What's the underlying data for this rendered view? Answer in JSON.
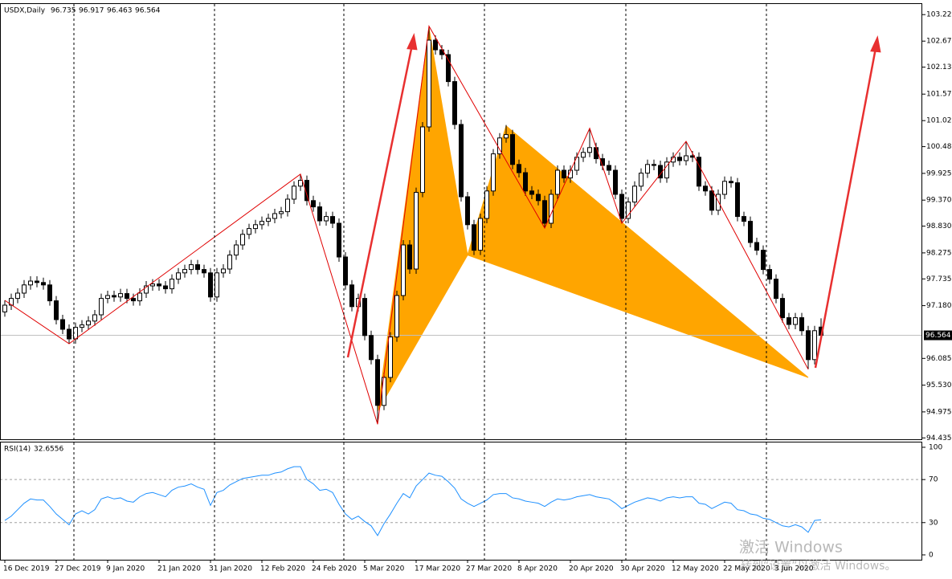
{
  "chart_data": [
    {
      "type": "candlestick",
      "title": "USDX,Daily",
      "categories": [
        "16 Dec 2019",
        null,
        null,
        null,
        null,
        null,
        null,
        null,
        "27 Dec 2019",
        null,
        null,
        null,
        null,
        null,
        null,
        null,
        "9 Jan 2020",
        null,
        null,
        null,
        null,
        null,
        null,
        null,
        "21 Jan 2020",
        null,
        null,
        null,
        null,
        null,
        null,
        null,
        "31 Jan 2020",
        null,
        null,
        null,
        null,
        null,
        null,
        null,
        "12 Feb 2020",
        null,
        null,
        null,
        null,
        null,
        null,
        null,
        "24 Feb 2020",
        null,
        null,
        null,
        null,
        null,
        null,
        null,
        "5 Mar 2020",
        null,
        null,
        null,
        null,
        null,
        null,
        null,
        "17 Mar 2020",
        null,
        null,
        null,
        null,
        null,
        null,
        null,
        "27 Mar 2020",
        null,
        null,
        null,
        null,
        null,
        null,
        null,
        "8 Apr 2020",
        null,
        null,
        null,
        null,
        null,
        null,
        null,
        "20 Apr 2020",
        null,
        null,
        null,
        null,
        null,
        null,
        null,
        "30 Apr 2020",
        null,
        null,
        null,
        null,
        null,
        null,
        null,
        "12 May 2020",
        null,
        null,
        null,
        null,
        null,
        null,
        null,
        "22 May 2020",
        null,
        null,
        null,
        null,
        null,
        null,
        null,
        "3 Jun 2020",
        null,
        null,
        null,
        null,
        null,
        null,
        null
      ],
      "open": [
        97.05,
        97.19,
        97.33,
        97.44,
        97.61,
        97.69,
        97.66,
        97.61,
        97.28,
        96.89,
        96.69,
        96.49,
        96.73,
        96.78,
        96.86,
        96.99,
        97.33,
        97.39,
        97.36,
        97.43,
        97.33,
        97.28,
        97.44,
        97.59,
        97.63,
        97.59,
        97.53,
        97.73,
        97.86,
        97.93,
        98.03,
        97.93,
        97.86,
        97.36,
        97.86,
        97.94,
        98.23,
        98.44,
        98.66,
        98.78,
        98.86,
        98.93,
        98.99,
        99.09,
        99.13,
        99.39,
        99.66,
        99.78,
        99.36,
        99.23,
        98.94,
        99.03,
        98.89,
        98.19,
        97.61,
        97.16,
        97.33,
        96.56,
        96.06,
        95.11,
        95.69,
        96.53,
        97.39,
        98.44,
        97.94,
        99.53,
        100.89,
        102.69,
        102.49,
        102.39,
        101.83,
        100.94,
        99.44,
        98.86,
        98.33,
        98.99,
        99.56,
        100.33,
        100.66,
        100.73,
        100.11,
        99.94,
        99.56,
        99.49,
        99.36,
        98.89,
        99.49,
        99.99,
        99.83,
        99.99,
        100.26,
        100.36,
        100.46,
        100.23,
        100.09,
        99.99,
        99.49,
        98.99,
        99.33,
        99.66,
        99.93,
        100.11,
        100.09,
        99.83,
        100.16,
        100.26,
        100.19,
        100.29,
        100.26,
        99.66,
        99.56,
        99.16,
        99.49,
        99.76,
        99.73,
        99.03,
        98.93,
        98.49,
        98.33,
        97.93,
        97.73,
        97.33,
        96.93,
        96.79,
        96.93,
        96.66,
        96.06,
        96.735
      ],
      "high": [
        97.29,
        97.43,
        97.54,
        97.71,
        97.79,
        97.79,
        97.76,
        97.71,
        97.38,
        96.99,
        96.79,
        96.83,
        96.88,
        96.96,
        97.09,
        97.43,
        97.49,
        97.49,
        97.53,
        97.53,
        97.43,
        97.54,
        97.69,
        97.73,
        97.73,
        97.69,
        97.83,
        97.96,
        98.03,
        98.13,
        98.13,
        98.03,
        97.96,
        97.96,
        98.04,
        98.33,
        98.54,
        98.76,
        98.88,
        98.96,
        99.03,
        99.09,
        99.19,
        99.23,
        99.49,
        99.76,
        99.91,
        99.88,
        99.46,
        99.33,
        99.13,
        99.13,
        98.99,
        98.29,
        97.71,
        97.43,
        97.43,
        96.66,
        96.16,
        95.79,
        96.63,
        97.49,
        98.54,
        98.54,
        99.63,
        100.99,
        102.98,
        102.79,
        102.59,
        102.49,
        101.93,
        101.04,
        99.54,
        98.96,
        99.09,
        99.66,
        100.43,
        100.76,
        100.93,
        100.83,
        100.21,
        100.04,
        99.66,
        99.59,
        99.46,
        99.59,
        100.09,
        100.09,
        100.09,
        100.36,
        100.46,
        100.86,
        100.56,
        100.33,
        100.19,
        100.09,
        99.59,
        99.43,
        99.76,
        100.03,
        100.21,
        100.21,
        100.19,
        100.26,
        100.36,
        100.36,
        100.59,
        100.39,
        100.36,
        99.76,
        99.66,
        99.59,
        99.86,
        99.86,
        99.83,
        99.13,
        99.03,
        98.59,
        98.43,
        98.03,
        97.83,
        97.43,
        97.03,
        97.03,
        97.03,
        96.76,
        96.76,
        96.917
      ],
      "low": [
        96.95,
        97.09,
        97.23,
        97.34,
        97.51,
        97.56,
        97.51,
        97.18,
        96.79,
        96.59,
        96.39,
        96.39,
        96.63,
        96.68,
        96.76,
        96.89,
        97.23,
        97.26,
        97.26,
        97.23,
        97.18,
        97.18,
        97.34,
        97.49,
        97.49,
        97.43,
        97.43,
        97.63,
        97.76,
        97.83,
        97.83,
        97.76,
        97.26,
        97.26,
        97.76,
        97.84,
        98.13,
        98.34,
        98.56,
        98.68,
        98.76,
        98.83,
        98.89,
        98.99,
        99.03,
        99.29,
        99.56,
        99.26,
        99.13,
        98.84,
        98.84,
        98.79,
        98.09,
        97.51,
        97.06,
        97.06,
        96.46,
        95.96,
        94.72,
        95.01,
        95.59,
        96.43,
        97.29,
        97.84,
        97.84,
        99.43,
        100.79,
        102.39,
        102.29,
        101.73,
        100.84,
        99.34,
        98.76,
        98.23,
        98.23,
        98.89,
        99.46,
        100.23,
        100.56,
        100.01,
        99.84,
        99.46,
        99.39,
        99.26,
        98.79,
        98.79,
        99.39,
        99.73,
        99.73,
        99.89,
        100.16,
        100.26,
        100.13,
        99.99,
        99.89,
        99.39,
        98.89,
        98.89,
        99.23,
        99.56,
        99.83,
        99.99,
        99.73,
        99.73,
        100.06,
        100.09,
        100.09,
        100.16,
        99.56,
        99.46,
        99.06,
        99.06,
        99.39,
        99.63,
        98.93,
        98.83,
        98.39,
        98.23,
        97.83,
        97.63,
        97.23,
        96.83,
        96.69,
        96.69,
        96.56,
        95.86,
        95.96,
        96.463
      ],
      "close": [
        97.19,
        97.33,
        97.44,
        97.61,
        97.69,
        97.66,
        97.61,
        97.28,
        96.89,
        96.69,
        96.49,
        96.73,
        96.78,
        96.86,
        96.99,
        97.33,
        97.39,
        97.36,
        97.43,
        97.33,
        97.28,
        97.44,
        97.59,
        97.63,
        97.59,
        97.53,
        97.73,
        97.86,
        97.93,
        98.03,
        97.93,
        97.86,
        97.36,
        97.86,
        97.94,
        98.23,
        98.44,
        98.66,
        98.78,
        98.86,
        98.93,
        98.99,
        99.09,
        99.13,
        99.39,
        99.66,
        99.78,
        99.36,
        99.23,
        98.94,
        99.03,
        98.89,
        98.19,
        97.61,
        97.16,
        97.33,
        96.56,
        96.06,
        95.11,
        95.69,
        96.53,
        97.39,
        98.44,
        97.94,
        99.53,
        100.89,
        102.69,
        102.49,
        102.39,
        101.83,
        100.94,
        99.44,
        98.86,
        98.33,
        98.99,
        99.56,
        100.33,
        100.66,
        100.73,
        100.11,
        99.94,
        99.56,
        99.49,
        99.36,
        98.89,
        99.49,
        99.99,
        99.83,
        99.99,
        100.26,
        100.36,
        100.46,
        100.23,
        100.09,
        99.99,
        99.49,
        98.99,
        99.33,
        99.66,
        99.93,
        100.11,
        100.09,
        99.83,
        100.16,
        100.26,
        100.19,
        100.29,
        100.26,
        99.66,
        99.56,
        99.16,
        99.49,
        99.76,
        99.73,
        99.03,
        98.93,
        98.49,
        98.33,
        97.93,
        97.73,
        97.33,
        96.93,
        96.79,
        96.93,
        96.66,
        96.06,
        96.66,
        96.564
      ],
      "up_color": "#ffffff",
      "down_color": "#000000",
      "xlim": [
        -0.75,
        142.75
      ],
      "ylim": [
        94.39,
        103.44
      ],
      "yticks": [
        103.22,
        102.67,
        102.13,
        101.57,
        101.02,
        100.48,
        99.925,
        {
          "value": 99.37,
          "label": "99.370"
        },
        {
          "value": 98.83,
          "label": "98.830"
        },
        98.275,
        97.735,
        {
          "value": 97.18,
          "label": "97.180"
        },
        96.085,
        {
          "value": 95.53,
          "label": "95.530"
        },
        94.975,
        94.435
      ],
      "zigzag": {
        "color": "#e00000",
        "x": [
          0,
          10,
          46,
          58,
          66,
          84,
          91,
          96,
          106,
          125
        ],
        "values": [
          97.29,
          96.39,
          99.91,
          94.72,
          102.98,
          98.79,
          100.86,
          98.89,
          100.59,
          95.86
        ]
      },
      "pattern": {
        "color": "#ffa500",
        "x": [
          58,
          66,
          72,
          78,
          125
        ],
        "values": [
          94.99,
          102.94,
          98.23,
          100.91,
          95.69
        ]
      }
    },
    {
      "type": "line",
      "title": "RSI(14)",
      "color": "#1e90ff",
      "values": [
        32,
        36,
        42,
        48,
        52,
        51,
        51,
        45,
        38,
        33,
        28,
        38,
        41,
        38,
        42,
        52,
        54,
        52,
        53,
        50,
        49,
        54,
        57,
        58,
        56,
        54,
        60,
        63,
        64,
        66,
        63,
        61,
        46,
        58,
        60,
        65,
        68,
        71,
        72,
        73,
        74,
        74,
        76,
        77,
        80,
        82,
        82,
        70,
        66,
        60,
        61,
        58,
        47,
        38,
        33,
        36,
        31,
        27,
        18,
        29,
        38,
        48,
        57,
        53,
        64,
        70,
        76,
        74,
        73,
        68,
        62,
        52,
        48,
        45,
        48,
        51,
        56,
        57,
        57,
        53,
        52,
        50,
        49,
        48,
        45,
        49,
        52,
        51,
        52,
        54,
        55,
        56,
        54,
        53,
        52,
        48,
        43,
        46,
        49,
        51,
        53,
        52,
        50,
        53,
        54,
        53,
        54,
        54,
        48,
        47,
        43,
        46,
        49,
        48,
        42,
        41,
        38,
        37,
        34,
        33,
        30,
        27,
        26,
        28,
        26,
        21,
        32,
        32.6556
      ],
      "ylim": [
        -4.5,
        105.2
      ],
      "yticks": [
        100,
        70,
        30,
        0
      ],
      "levels": [
        70,
        30
      ]
    }
  ],
  "watermark": {
    "title": "激活 Windows",
    "subtitle": "转到“设置”以激活 Windows。"
  }
}
